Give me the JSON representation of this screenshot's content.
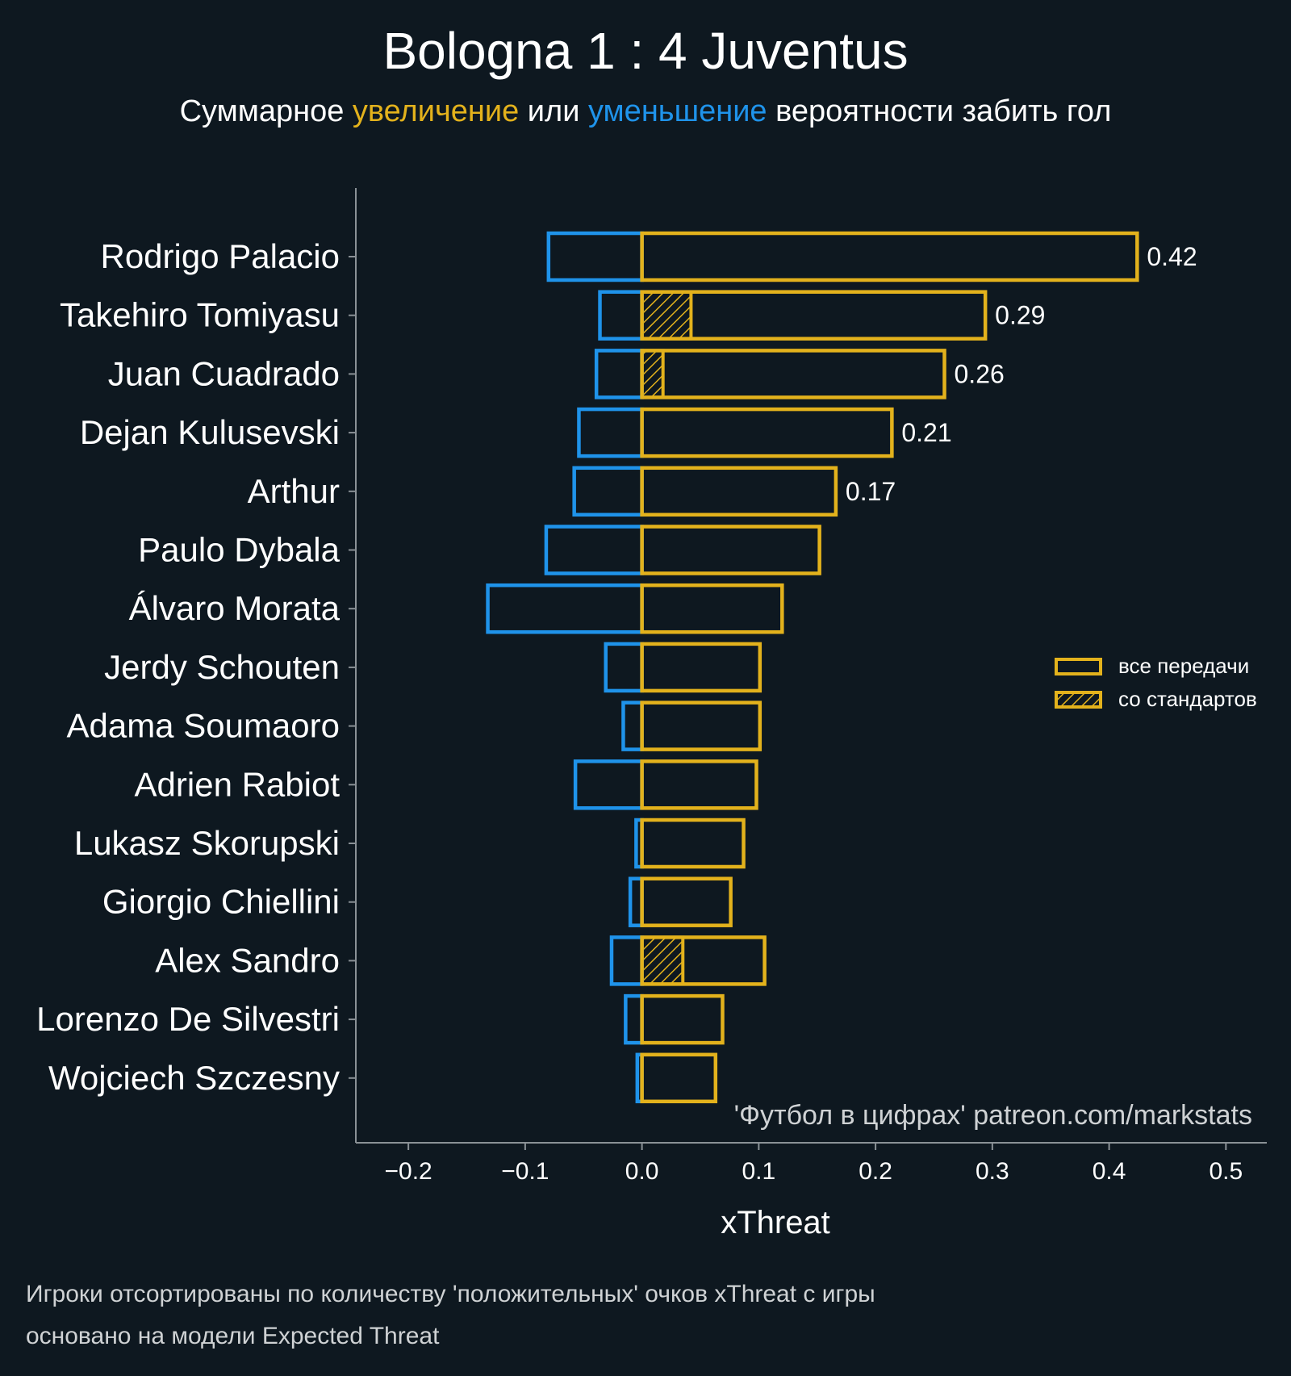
{
  "chart_data": {
    "type": "bar",
    "orientation": "horizontal",
    "title": "Bologna 1 : 4 Juventus",
    "subtitle": {
      "parts": [
        {
          "text": "Суммарное ",
          "color": "#ffffff"
        },
        {
          "text": "увеличение",
          "color": "#e3b21c"
        },
        {
          "text": " или ",
          "color": "#ffffff"
        },
        {
          "text": "уменьшение",
          "color": "#1f93ea"
        },
        {
          "text": " вероятности забить гол",
          "color": "#ffffff"
        }
      ]
    },
    "xlabel": "xThreat",
    "ylabel": "",
    "xlim": [
      -0.245,
      0.535
    ],
    "xticks": [
      -0.2,
      -0.1,
      0.0,
      0.1,
      0.2,
      0.3,
      0.4,
      0.5
    ],
    "xtick_labels": [
      "−0.2",
      "−0.1",
      "0.0",
      "0.1",
      "0.2",
      "0.3",
      "0.4",
      "0.5"
    ],
    "grid": false,
    "colors": {
      "background": "#0e1820",
      "positive": "#e3b21c",
      "negative": "#1f93ea",
      "axis": "#8a9196",
      "text": "#ffffff",
      "muted": "#cfd2d4"
    },
    "categories": [
      "Rodrigo Palacio",
      "Takehiro Tomiyasu",
      "Juan Cuadrado",
      "Dejan Kulusevski",
      "Arthur",
      "Paulo Dybala",
      "Álvaro Morata",
      "Jerdy Schouten",
      "Adama Soumaoro",
      "Adrien Rabiot",
      "Lukasz Skorupski",
      "Giorgio Chiellini",
      "Alex Sandro",
      "Lorenzo De Silvestri",
      "Wojciech Szczesny"
    ],
    "series": [
      {
        "name": "все передачи",
        "kind": "positive",
        "values": [
          0.424,
          0.294,
          0.259,
          0.214,
          0.166,
          0.152,
          0.12,
          0.101,
          0.101,
          0.098,
          0.087,
          0.076,
          0.105,
          0.069,
          0.063
        ]
      },
      {
        "kind": "negative",
        "values": [
          -0.08,
          -0.036,
          -0.039,
          -0.054,
          -0.058,
          -0.082,
          -0.132,
          -0.031,
          -0.016,
          -0.057,
          -0.005,
          -0.01,
          -0.026,
          -0.014,
          -0.004
        ]
      },
      {
        "name": "со стандартов",
        "kind": "set-piece",
        "values": [
          0,
          0.042,
          0.018,
          0,
          0,
          0,
          0,
          0,
          0,
          0,
          0,
          0,
          0.035,
          0,
          0
        ]
      }
    ],
    "data_labels": [
      "0.42",
      "0.29",
      "0.26",
      "0.21",
      "0.17",
      "",
      "",
      "",
      "",
      "",
      "",
      "",
      "",
      "",
      ""
    ],
    "legend": {
      "position": "center-right",
      "items": [
        {
          "label": "все передачи",
          "style": "outline"
        },
        {
          "label": "со стандартов",
          "style": "hatched"
        }
      ]
    },
    "watermark": "'Футбол в цифрах' patreon.com/markstats",
    "footnotes": [
      "Игроки отсортированы по количеству 'положительных' очков xThreat с игры",
      "основано на модели Expected Threat"
    ]
  }
}
